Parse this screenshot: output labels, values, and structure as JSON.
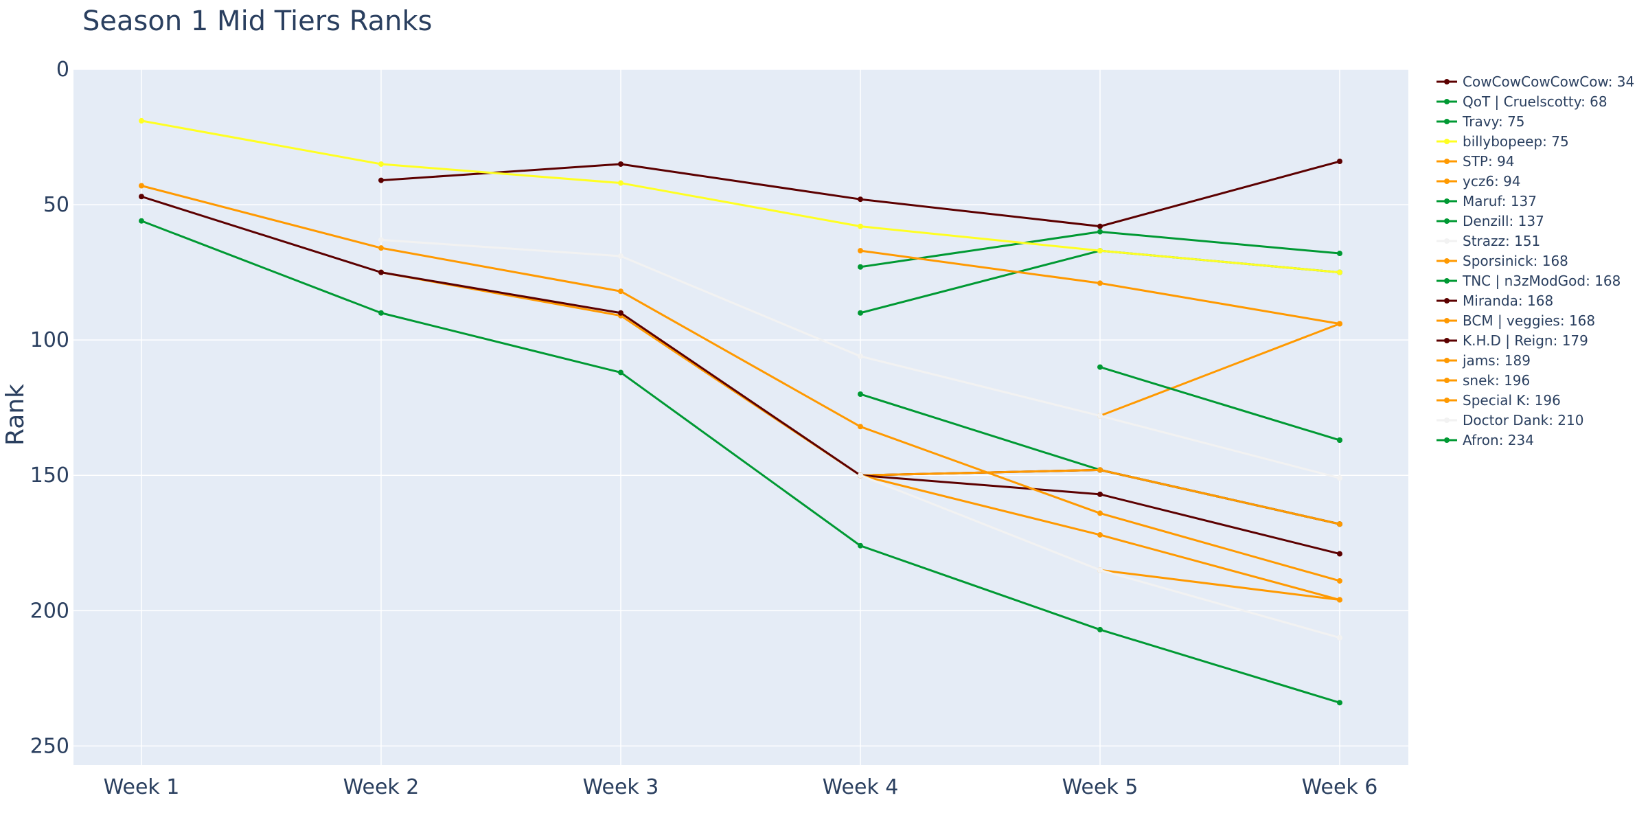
{
  "chart_data": {
    "type": "line",
    "title": "Season 1 Mid Tiers Ranks",
    "xlabel": "",
    "ylabel": "Rank",
    "categories": [
      "Week 1",
      "Week 2",
      "Week 3",
      "Week 4",
      "Week 5",
      "Week 6"
    ],
    "ylim": [
      257,
      0
    ],
    "y_reversed": true,
    "yticks": [
      0,
      50,
      100,
      150,
      200,
      250
    ],
    "grid": true,
    "legend_position": "right",
    "plot_background": "#e5ecf6",
    "series": [
      {
        "name": "CowCowCowCowCow: 34",
        "color": "#5c0000",
        "values": [
          null,
          41,
          35,
          48,
          58,
          34
        ]
      },
      {
        "name": "QoT | Cruelscotty: 68",
        "color": "#009933",
        "values": [
          null,
          null,
          null,
          73,
          60,
          68
        ]
      },
      {
        "name": "Travy: 75",
        "color": "#009933",
        "values": [
          null,
          null,
          null,
          90,
          67,
          75
        ]
      },
      {
        "name": "billybopeep: 75",
        "color": "#ffff22",
        "values": [
          19,
          35,
          42,
          58,
          67,
          75
        ]
      },
      {
        "name": "STP: 94",
        "color": "#ff9900",
        "values": [
          null,
          null,
          null,
          null,
          128,
          94
        ]
      },
      {
        "name": "ycz6: 94",
        "color": "#ff9900",
        "values": [
          null,
          null,
          null,
          67,
          79,
          94
        ]
      },
      {
        "name": "Maruf: 137",
        "color": "#009933",
        "values": [
          null,
          null,
          null,
          null,
          110,
          137
        ]
      },
      {
        "name": "Denzill: 137",
        "color": "#009933",
        "values": [
          null,
          null,
          null,
          null,
          null,
          137
        ]
      },
      {
        "name": "Strazz: 151",
        "color": "#f2f2f2",
        "values": [
          null,
          63,
          69,
          106,
          128,
          151
        ]
      },
      {
        "name": "Sporsinick: 168",
        "color": "#ff9900",
        "values": [
          null,
          null,
          null,
          150,
          148,
          168
        ]
      },
      {
        "name": "TNC | n3zModGod: 168",
        "color": "#009933",
        "values": [
          null,
          null,
          null,
          120,
          148,
          168
        ]
      },
      {
        "name": "Miranda: 168",
        "color": "#5c0000",
        "values": [
          null,
          null,
          null,
          150,
          148,
          168
        ]
      },
      {
        "name": "BCM | veggies: 168",
        "color": "#ff9900",
        "values": [
          null,
          75,
          91,
          150,
          148,
          168
        ]
      },
      {
        "name": "K.H.D | Reign: 179",
        "color": "#5c0000",
        "values": [
          47,
          75,
          90,
          150,
          157,
          179
        ]
      },
      {
        "name": "jams: 189",
        "color": "#ff9900",
        "values": [
          43,
          66,
          82,
          132,
          164,
          189
        ]
      },
      {
        "name": "snek: 196",
        "color": "#ff9900",
        "values": [
          null,
          null,
          null,
          150,
          172,
          196
        ]
      },
      {
        "name": "Special K: 196",
        "color": "#ff9900",
        "values": [
          null,
          null,
          null,
          null,
          185,
          196
        ]
      },
      {
        "name": "Doctor Dank: 210",
        "color": "#f2f2f2",
        "values": [
          null,
          null,
          null,
          150,
          185,
          210
        ]
      },
      {
        "name": "Afron: 234",
        "color": "#009933",
        "values": [
          56,
          90,
          112,
          176,
          207,
          234
        ]
      }
    ]
  }
}
